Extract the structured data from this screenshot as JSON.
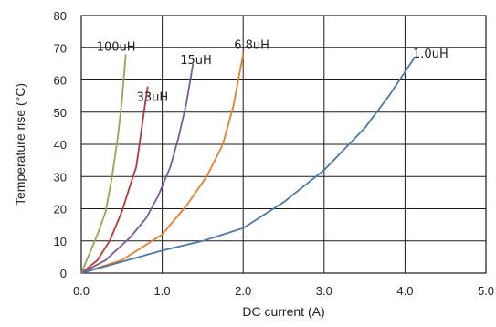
{
  "chart_data": {
    "type": "line",
    "title": "",
    "xlabel": "DC current (A)",
    "ylabel": "Temperature rise (°C)",
    "xlim": [
      0,
      5
    ],
    "ylim": [
      0,
      80
    ],
    "x_ticks": [
      "0.0",
      "1.0",
      "2.0",
      "3.0",
      "4.0",
      "5.0"
    ],
    "y_ticks": [
      "0",
      "10",
      "20",
      "30",
      "40",
      "50",
      "60",
      "70",
      "80"
    ],
    "grid": true,
    "legend": "none",
    "series": [
      {
        "name": "100uH",
        "color": "#8aad52",
        "points": [
          [
            0,
            0
          ],
          [
            0.1,
            6
          ],
          [
            0.2,
            12
          ],
          [
            0.3,
            19
          ],
          [
            0.38,
            30
          ],
          [
            0.45,
            42
          ],
          [
            0.5,
            53
          ],
          [
            0.55,
            68
          ]
        ]
      },
      {
        "name": "33uH",
        "color": "#b8383a",
        "points": [
          [
            0,
            0
          ],
          [
            0.2,
            4
          ],
          [
            0.35,
            10
          ],
          [
            0.5,
            19
          ],
          [
            0.6,
            27
          ],
          [
            0.68,
            33
          ],
          [
            0.73,
            42
          ],
          [
            0.78,
            51
          ],
          [
            0.82,
            58
          ]
        ]
      },
      {
        "name": "15uH",
        "color": "#7a5a98",
        "points": [
          [
            0,
            0
          ],
          [
            0.3,
            4
          ],
          [
            0.6,
            11
          ],
          [
            0.8,
            17
          ],
          [
            0.95,
            24
          ],
          [
            1.1,
            33
          ],
          [
            1.2,
            42
          ],
          [
            1.3,
            53
          ],
          [
            1.38,
            65
          ]
        ]
      },
      {
        "name": "6.8uH",
        "color": "#e67e30",
        "points": [
          [
            0,
            0
          ],
          [
            0.5,
            4
          ],
          [
            1.0,
            12
          ],
          [
            1.3,
            21
          ],
          [
            1.55,
            30
          ],
          [
            1.75,
            40
          ],
          [
            1.88,
            52
          ],
          [
            2.0,
            68
          ]
        ]
      },
      {
        "name": "1.0uH",
        "color": "#4a78a8",
        "points": [
          [
            0,
            0
          ],
          [
            1.0,
            7
          ],
          [
            1.5,
            10
          ],
          [
            2.0,
            14
          ],
          [
            2.5,
            22
          ],
          [
            3.0,
            32
          ],
          [
            3.5,
            45
          ],
          [
            3.8,
            55
          ],
          [
            4.12,
            67
          ]
        ]
      }
    ]
  }
}
